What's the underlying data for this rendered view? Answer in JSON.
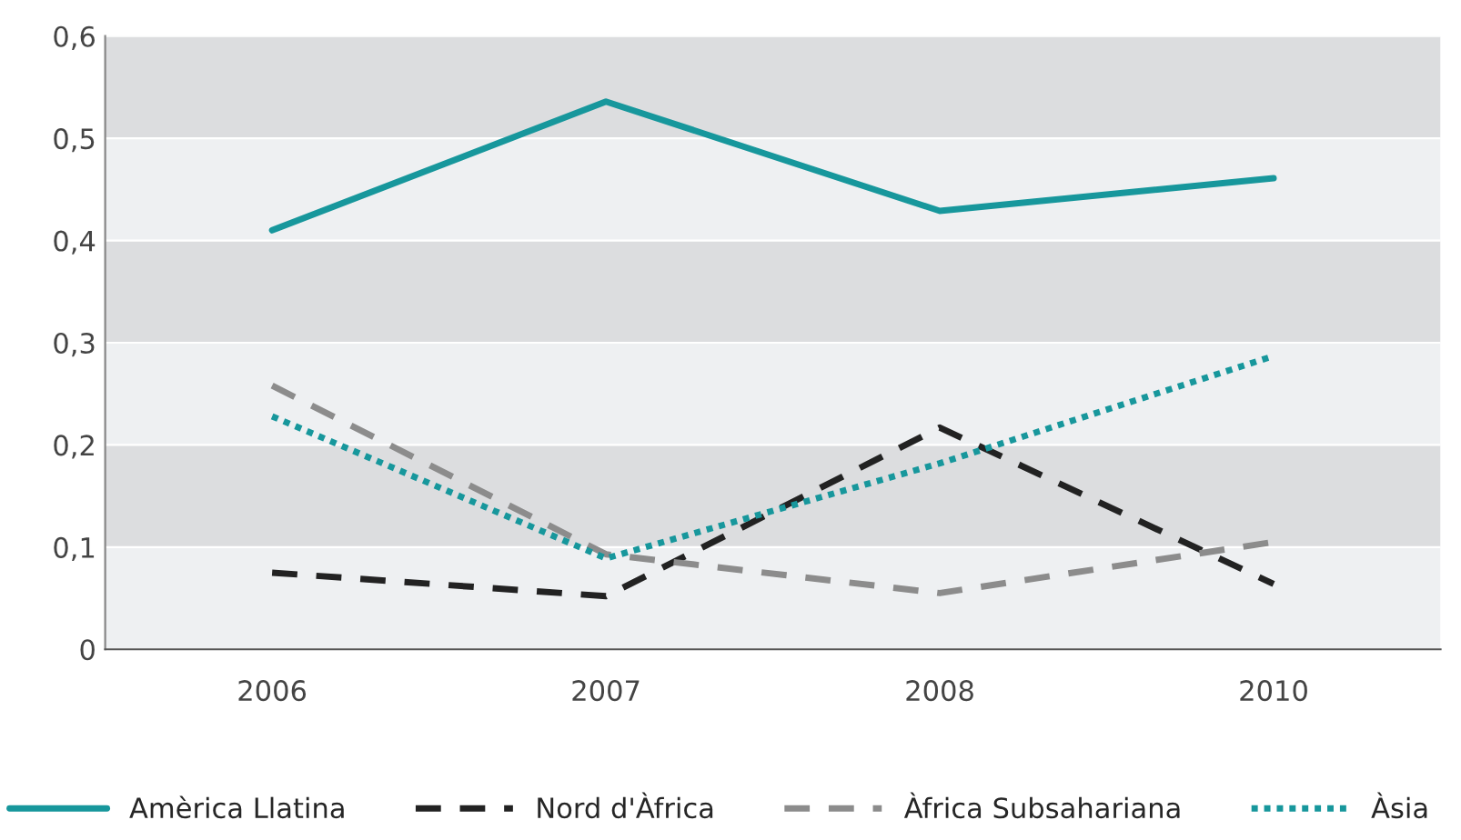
{
  "chart_data": {
    "type": "line",
    "categories": [
      "2006",
      "2007",
      "2008",
      "2010"
    ],
    "series": [
      {
        "name": "Amèrica Llatina",
        "color": "#17979c",
        "line_style": "solid",
        "values": [
          0.41,
          0.536,
          0.429,
          0.461
        ]
      },
      {
        "name": "Nord d'Àfrica",
        "color": "#222222",
        "line_style": "dashed",
        "values": [
          0.075,
          0.052,
          0.217,
          0.064
        ]
      },
      {
        "name": "Àfrica Subsahariana",
        "color": "#8c8c8c",
        "line_style": "dashed",
        "values": [
          0.258,
          0.093,
          0.055,
          0.105
        ]
      },
      {
        "name": "Àsia",
        "color": "#17979c",
        "line_style": "dotted",
        "values": [
          0.228,
          0.089,
          0.182,
          0.287
        ]
      }
    ],
    "ylim": [
      0,
      0.6
    ],
    "yticks": [
      {
        "value": 0,
        "label": "0"
      },
      {
        "value": 0.1,
        "label": "0,1"
      },
      {
        "value": 0.2,
        "label": "0,2"
      },
      {
        "value": 0.3,
        "label": "0,3"
      },
      {
        "value": 0.4,
        "label": "0,4"
      },
      {
        "value": 0.5,
        "label": "0,5"
      },
      {
        "value": 0.6,
        "label": "0,6"
      }
    ],
    "grid": "y",
    "legend": "bottom",
    "marker": "none"
  }
}
